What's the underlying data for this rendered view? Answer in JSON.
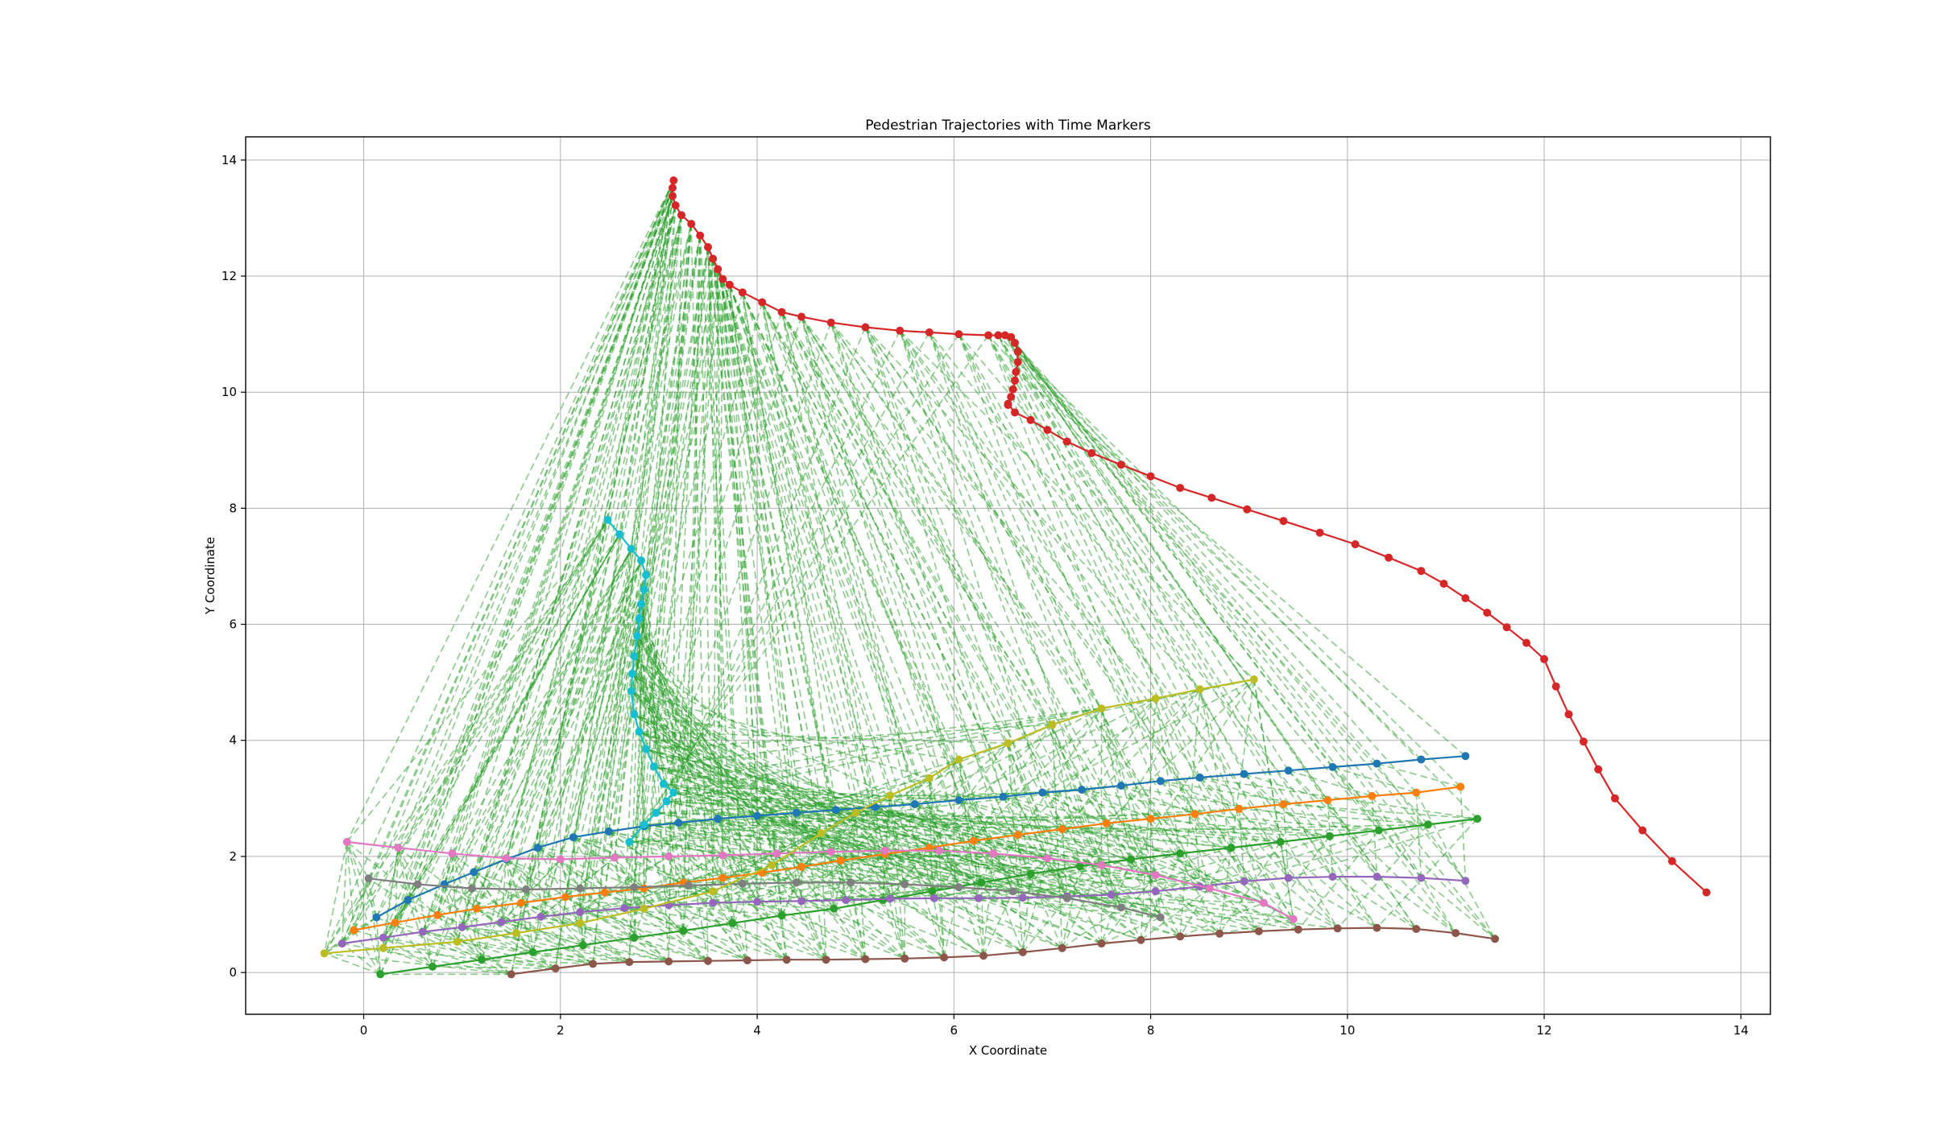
{
  "chart_data": {
    "type": "line",
    "title": "Pedestrian Trajectories with Time Markers",
    "xlabel": "X Coordinate",
    "ylabel": "Y Coordinate",
    "xlim": [
      -1.2,
      14.3
    ],
    "ylim": [
      -0.72,
      14.4
    ],
    "xticks": [
      0,
      2,
      4,
      6,
      8,
      10,
      12,
      14
    ],
    "yticks": [
      0,
      2,
      4,
      6,
      8,
      10,
      12,
      14
    ],
    "grid": true,
    "legend": "none",
    "colors": {
      "blue": "#1f77b4",
      "orange": "#ff7f0e",
      "green": "#2ca02c",
      "red": "#d62728",
      "purple": "#9467bd",
      "brown": "#8c564b",
      "pink": "#e377c2",
      "gray": "#7f7f7f",
      "olive": "#bcbd22",
      "cyan": "#17becf",
      "link": "#2ca02c"
    },
    "series": [
      {
        "color": "#1f77b4",
        "x": [
          0.13,
          0.45,
          0.82,
          1.12,
          1.45,
          1.77,
          2.13,
          2.49,
          2.85,
          3.2,
          3.6,
          4.0,
          4.4,
          4.8,
          5.2,
          5.6,
          6.05,
          6.5,
          6.9,
          7.3,
          7.7,
          8.1,
          8.5,
          8.95,
          9.4,
          9.85,
          10.3,
          10.75,
          11.2
        ],
        "y": [
          0.95,
          1.25,
          1.52,
          1.73,
          1.95,
          2.15,
          2.33,
          2.43,
          2.52,
          2.58,
          2.65,
          2.7,
          2.75,
          2.8,
          2.85,
          2.9,
          2.97,
          3.03,
          3.1,
          3.15,
          3.22,
          3.3,
          3.36,
          3.42,
          3.48,
          3.54,
          3.6,
          3.67,
          3.73
        ]
      },
      {
        "color": "#ff7f0e",
        "x": [
          -0.1,
          0.32,
          0.75,
          1.15,
          1.6,
          2.05,
          2.45,
          2.85,
          3.25,
          3.65,
          4.05,
          4.45,
          4.85,
          5.3,
          5.75,
          6.2,
          6.65,
          7.1,
          7.55,
          8.0,
          8.45,
          8.9,
          9.35,
          9.8,
          10.25,
          10.7,
          11.15
        ],
        "y": [
          0.73,
          0.86,
          0.99,
          1.1,
          1.2,
          1.3,
          1.38,
          1.45,
          1.55,
          1.63,
          1.72,
          1.82,
          1.93,
          2.04,
          2.15,
          2.27,
          2.37,
          2.47,
          2.57,
          2.65,
          2.73,
          2.82,
          2.9,
          2.97,
          3.04,
          3.1,
          3.2
        ]
      },
      {
        "color": "#2ca02c",
        "x": [
          0.17,
          0.7,
          1.2,
          1.72,
          2.23,
          2.75,
          3.25,
          3.75,
          4.25,
          4.78,
          5.28,
          5.78,
          6.28,
          6.78,
          7.28,
          7.8,
          8.3,
          8.82,
          9.32,
          9.82,
          10.32,
          10.82,
          11.32
        ],
        "y": [
          -0.03,
          0.1,
          0.22,
          0.35,
          0.47,
          0.6,
          0.72,
          0.85,
          0.98,
          1.1,
          1.25,
          1.4,
          1.55,
          1.7,
          1.83,
          1.95,
          2.05,
          2.15,
          2.25,
          2.35,
          2.45,
          2.55,
          2.65
        ]
      },
      {
        "color": "#d62728",
        "x": [
          3.15,
          3.14,
          3.14,
          3.17,
          3.23,
          3.33,
          3.42,
          3.5,
          3.55,
          3.6,
          3.65,
          3.72,
          3.85,
          4.05,
          4.25,
          4.45,
          4.75,
          5.1,
          5.45,
          5.75,
          6.05,
          6.35,
          6.45,
          6.52,
          6.58,
          6.62,
          6.65,
          6.65,
          6.63,
          6.62,
          6.6,
          6.58,
          6.55,
          6.55,
          6.62,
          6.78,
          6.95,
          7.15,
          7.4,
          7.7,
          8.0,
          8.3,
          8.62,
          8.98,
          9.35,
          9.72,
          10.08,
          10.42,
          10.75,
          10.98,
          11.2,
          11.42,
          11.62,
          11.82,
          12.0,
          12.12,
          12.25,
          12.4,
          12.55,
          12.72,
          13.0,
          13.3,
          13.65
        ],
        "y": [
          13.65,
          13.52,
          13.38,
          13.22,
          13.05,
          12.9,
          12.7,
          12.5,
          12.3,
          12.12,
          11.95,
          11.85,
          11.72,
          11.55,
          11.38,
          11.3,
          11.2,
          11.12,
          11.06,
          11.03,
          11.0,
          10.98,
          10.98,
          10.98,
          10.95,
          10.85,
          10.7,
          10.52,
          10.35,
          10.2,
          10.05,
          9.92,
          9.78,
          9.8,
          9.65,
          9.52,
          9.35,
          9.15,
          8.95,
          8.75,
          8.55,
          8.35,
          8.18,
          7.98,
          7.78,
          7.58,
          7.38,
          7.15,
          6.92,
          6.7,
          6.45,
          6.2,
          5.95,
          5.68,
          5.4,
          4.93,
          4.45,
          3.98,
          3.5,
          3.0,
          2.45,
          1.92,
          1.38
        ]
      },
      {
        "color": "#9467bd",
        "x": [
          -0.22,
          0.2,
          0.6,
          1.0,
          1.4,
          1.8,
          2.2,
          2.65,
          3.1,
          3.55,
          4.0,
          4.45,
          4.9,
          5.35,
          5.8,
          6.25,
          6.7,
          7.15,
          7.6,
          8.05,
          8.5,
          8.95,
          9.4,
          9.85,
          10.3,
          10.75,
          11.2
        ],
        "y": [
          0.5,
          0.6,
          0.7,
          0.78,
          0.87,
          0.96,
          1.04,
          1.11,
          1.16,
          1.2,
          1.22,
          1.23,
          1.25,
          1.27,
          1.28,
          1.28,
          1.29,
          1.31,
          1.34,
          1.4,
          1.48,
          1.57,
          1.63,
          1.65,
          1.65,
          1.63,
          1.58
        ]
      },
      {
        "color": "#8c564b",
        "x": [
          1.5,
          1.95,
          2.33,
          2.7,
          3.1,
          3.5,
          3.9,
          4.3,
          4.7,
          5.1,
          5.5,
          5.9,
          6.3,
          6.7,
          7.1,
          7.5,
          7.9,
          8.3,
          8.7,
          9.1,
          9.5,
          9.9,
          10.3,
          10.7,
          11.1,
          11.5
        ],
        "y": [
          -0.03,
          0.07,
          0.15,
          0.18,
          0.19,
          0.2,
          0.21,
          0.22,
          0.22,
          0.23,
          0.24,
          0.26,
          0.29,
          0.35,
          0.42,
          0.5,
          0.56,
          0.62,
          0.67,
          0.71,
          0.74,
          0.76,
          0.77,
          0.75,
          0.68,
          0.58
        ]
      },
      {
        "color": "#e377c2",
        "x": [
          -0.17,
          0.35,
          0.9,
          1.45,
          2.0,
          2.55,
          3.1,
          3.65,
          4.2,
          4.75,
          5.3,
          5.85,
          6.4,
          6.95,
          7.5,
          8.05,
          8.6,
          9.15,
          9.45
        ],
        "y": [
          2.25,
          2.15,
          2.05,
          1.97,
          1.95,
          1.98,
          2.0,
          2.02,
          2.05,
          2.08,
          2.1,
          2.1,
          2.05,
          1.97,
          1.85,
          1.68,
          1.45,
          1.2,
          0.92
        ]
      },
      {
        "color": "#7f7f7f",
        "x": [
          0.05,
          0.55,
          1.1,
          1.65,
          2.2,
          2.75,
          3.3,
          3.85,
          4.4,
          4.95,
          5.5,
          6.05,
          6.6,
          7.15,
          7.7,
          8.1
        ],
        "y": [
          1.62,
          1.52,
          1.45,
          1.43,
          1.45,
          1.47,
          1.5,
          1.53,
          1.55,
          1.55,
          1.52,
          1.47,
          1.4,
          1.28,
          1.12,
          0.95
        ]
      },
      {
        "color": "#bcbd22",
        "x": [
          -0.4,
          0.2,
          0.95,
          1.55,
          2.2,
          2.85,
          3.55,
          4.15,
          4.65,
          5.0,
          5.35,
          5.75,
          6.05,
          6.55,
          7.0,
          7.5,
          8.05,
          8.5,
          9.05
        ],
        "y": [
          0.33,
          0.42,
          0.53,
          0.68,
          0.85,
          1.1,
          1.4,
          1.85,
          2.4,
          2.75,
          3.05,
          3.35,
          3.67,
          3.95,
          4.27,
          4.55,
          4.72,
          4.88,
          5.05
        ]
      },
      {
        "color": "#17becf",
        "x": [
          2.48,
          2.6,
          2.72,
          2.82,
          2.87,
          2.85,
          2.82,
          2.8,
          2.78,
          2.75,
          2.73,
          2.72,
          2.75,
          2.8,
          2.87,
          2.95,
          3.05,
          3.15,
          3.08,
          2.97,
          2.85,
          2.7
        ],
        "y": [
          7.8,
          7.55,
          7.3,
          7.1,
          6.85,
          6.6,
          6.35,
          6.1,
          5.8,
          5.45,
          5.15,
          4.85,
          4.45,
          4.15,
          3.85,
          3.55,
          3.25,
          3.1,
          2.95,
          2.75,
          2.55,
          2.25
        ]
      }
    ]
  }
}
